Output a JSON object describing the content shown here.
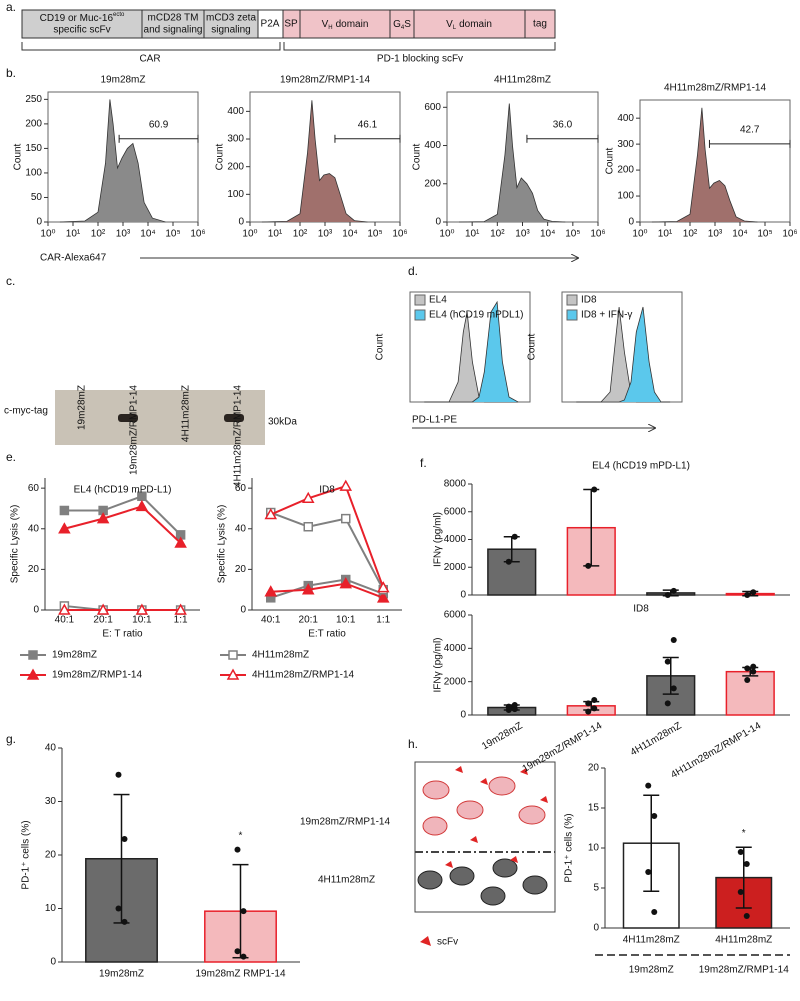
{
  "figure": {
    "panel_labels": {
      "a": "a.",
      "b": "b.",
      "c": "c.",
      "d": "d.",
      "e": "e.",
      "f": "f.",
      "g": "g.",
      "h": "h."
    },
    "panel_a": {
      "boxes": [
        {
          "line1": "CD19 or Muc-16",
          "sup": "ecto",
          "line2": "specific scFv"
        },
        {
          "line1": "mCD28 TM",
          "line2": "and signaling"
        },
        {
          "line1": "mCD3 zeta",
          "line2": "signaling"
        },
        {
          "text": "P2A"
        },
        {
          "text": "SP"
        },
        {
          "text": "V",
          "sub": "H",
          "rest": "domain"
        },
        {
          "text": "G",
          "sub": "4",
          "rest": "S"
        },
        {
          "text": "V",
          "sub": "L",
          "rest": "domain"
        },
        {
          "text": "tag"
        }
      ],
      "brackets": [
        "CAR",
        "PD-1 blocking scFv"
      ]
    },
    "panel_c": {
      "lanes": [
        "19m28mZ",
        "19m28mZ/RMP1-14",
        "4H11m28mZ",
        "4H11m28mZ/RMP1-14"
      ],
      "band_label": "c-myc-tag",
      "size_label": "30kDa"
    },
    "panel_h": {
      "groups": [
        "19m28mZ/RMP1-14",
        "4H11m28mZ"
      ],
      "key": "scFv"
    }
  },
  "chart_data": [
    {
      "type": "area",
      "title": "19m28mZ",
      "ylabel": "Count",
      "xlabel": "CAR-Alexa647",
      "log_x": true,
      "x": [
        3,
        30,
        100,
        200,
        300,
        400,
        600,
        900,
        1500,
        2500,
        4000,
        7000,
        15000,
        50000
      ],
      "values": [
        0,
        2,
        20,
        120,
        250,
        200,
        110,
        130,
        150,
        160,
        120,
        40,
        8,
        0
      ],
      "color": "#8a8a8a",
      "xlim": [
        1,
        1000000
      ],
      "xticks": [
        {
          "value": 1,
          "label": "10⁰"
        },
        {
          "value": 10,
          "label": "10¹"
        },
        {
          "value": 100,
          "label": "10²"
        },
        {
          "value": 1000,
          "label": "10³"
        },
        {
          "value": 10000,
          "label": "10⁴"
        },
        {
          "value": 100000,
          "label": "10⁵"
        },
        {
          "value": 1000000,
          "label": "10⁶"
        }
      ],
      "ylim": [
        0,
        265
      ],
      "yticks": [
        0,
        50,
        100,
        150,
        200,
        250
      ],
      "gate": [
        700,
        1000000
      ],
      "gate_label": "60.9"
    },
    {
      "type": "area",
      "title": "19m28mZ/RMP1-14",
      "ylabel": "Count",
      "log_x": true,
      "x": [
        3,
        30,
        100,
        200,
        300,
        400,
        600,
        900,
        1500,
        2500,
        4000,
        7000,
        15000,
        50000
      ],
      "values": [
        0,
        2,
        30,
        250,
        440,
        300,
        150,
        170,
        175,
        160,
        100,
        30,
        5,
        0
      ],
      "color": "#a0706c",
      "xlim": [
        1,
        1000000
      ],
      "xticks": [
        {
          "value": 1,
          "label": "10⁰"
        },
        {
          "value": 10,
          "label": "10¹"
        },
        {
          "value": 100,
          "label": "10²"
        },
        {
          "value": 1000,
          "label": "10³"
        },
        {
          "value": 10000,
          "label": "10⁴"
        },
        {
          "value": 100000,
          "label": "10⁵"
        },
        {
          "value": 1000000,
          "label": "10⁶"
        }
      ],
      "ylim": [
        0,
        470
      ],
      "yticks": [
        0,
        100,
        200,
        300,
        400
      ],
      "gate": [
        2500,
        1000000
      ],
      "gate_label": "46.1"
    },
    {
      "type": "area",
      "title": "4H11m28mZ",
      "ylabel": "Count",
      "log_x": true,
      "x": [
        3,
        30,
        100,
        200,
        300,
        400,
        600,
        900,
        1500,
        2500,
        4000,
        7000,
        15000,
        50000
      ],
      "values": [
        0,
        2,
        40,
        350,
        620,
        400,
        180,
        230,
        200,
        150,
        60,
        15,
        3,
        0
      ],
      "color": "#8a8a8a",
      "xlim": [
        1,
        1000000
      ],
      "xticks": [
        {
          "value": 1,
          "label": "10⁰"
        },
        {
          "value": 10,
          "label": "10¹"
        },
        {
          "value": 100,
          "label": "10²"
        },
        {
          "value": 1000,
          "label": "10³"
        },
        {
          "value": 10000,
          "label": "10⁴"
        },
        {
          "value": 100000,
          "label": "10⁵"
        },
        {
          "value": 1000000,
          "label": "10⁶"
        }
      ],
      "ylim": [
        0,
        680
      ],
      "yticks": [
        0,
        200,
        400,
        600
      ],
      "gate": [
        1500,
        1000000
      ],
      "gate_label": "36.0"
    },
    {
      "type": "area",
      "title": "4H11m28mZ/RMP1-14",
      "ylabel": "Count",
      "log_x": true,
      "x": [
        3,
        30,
        100,
        200,
        300,
        400,
        600,
        900,
        1500,
        2500,
        4000,
        7000,
        15000,
        50000
      ],
      "values": [
        0,
        2,
        30,
        260,
        440,
        280,
        130,
        150,
        160,
        140,
        80,
        20,
        4,
        0
      ],
      "color": "#a0706c",
      "xlim": [
        1,
        1000000
      ],
      "xticks": [
        {
          "value": 1,
          "label": "10⁰"
        },
        {
          "value": 10,
          "label": "10¹"
        },
        {
          "value": 100,
          "label": "10²"
        },
        {
          "value": 1000,
          "label": "10³"
        },
        {
          "value": 10000,
          "label": "10⁴"
        },
        {
          "value": 100000,
          "label": "10⁵"
        },
        {
          "value": 1000000,
          "label": "10⁶"
        }
      ],
      "ylim": [
        0,
        470
      ],
      "yticks": [
        0,
        100,
        200,
        300,
        400
      ],
      "gate": [
        600,
        1000000
      ],
      "gate_label": "42.7"
    },
    {
      "type": "area",
      "ylabel": "Count",
      "xlabel": "PD-L1-PE",
      "log_x": true,
      "x": [
        3,
        20,
        40,
        60,
        80,
        120,
        200,
        300,
        500,
        800,
        1200,
        2000,
        4000
      ],
      "xlim": [
        1,
        10000
      ],
      "ylim": [
        0,
        110
      ],
      "series": [
        {
          "name": "EL4",
          "color": "#c4c4c4",
          "values": [
            0,
            0,
            20,
            70,
            90,
            40,
            5,
            0,
            0,
            0,
            0,
            0,
            0
          ]
        },
        {
          "name": "EL4 (hCD19 mPDL1)",
          "color": "#5bc8ec",
          "values": [
            0,
            0,
            0,
            0,
            0,
            0,
            5,
            30,
            90,
            100,
            40,
            5,
            0
          ]
        }
      ]
    },
    {
      "type": "area",
      "ylabel": "Count",
      "log_x": true,
      "x": [
        3,
        20,
        40,
        60,
        80,
        120,
        200,
        300,
        500,
        800,
        1200,
        2000,
        4000
      ],
      "xlim": [
        1,
        10000
      ],
      "ylim": [
        0,
        110
      ],
      "series": [
        {
          "name": "ID8",
          "color": "#c4c4c4",
          "values": [
            0,
            0,
            10,
            60,
            95,
            50,
            8,
            0,
            0,
            0,
            0,
            0,
            0
          ]
        },
        {
          "name": "ID8 + IFN-γ",
          "color": "#5bc8ec",
          "values": [
            0,
            0,
            0,
            0,
            0,
            2,
            20,
            70,
            95,
            40,
            10,
            0,
            0
          ]
        }
      ]
    },
    {
      "type": "line",
      "title": "EL4 (hCD19 mPD-L1)",
      "ylabel": "Specific Lysis (%)",
      "xlabel": "E: T ratio",
      "categories": [
        "40:1",
        "20:1",
        "10:1",
        "1:1"
      ],
      "ylim": [
        0,
        65
      ],
      "yticks": [
        0,
        20,
        40,
        60
      ],
      "series": [
        {
          "name": "19m28mZ",
          "color": "#808080",
          "marker": "square",
          "filled": true,
          "values": [
            49,
            49,
            56,
            37
          ]
        },
        {
          "name": "19m28mZ/RMP1-14",
          "color": "#e8202a",
          "marker": "triangle",
          "filled": true,
          "values": [
            40,
            45,
            51,
            33
          ]
        },
        {
          "name": "4H11m28mZ",
          "color": "#808080",
          "marker": "square",
          "filled": false,
          "values": [
            2,
            0,
            0,
            0
          ]
        },
        {
          "name": "4H11m28mZ/RMP1-14",
          "color": "#e8202a",
          "marker": "triangle",
          "filled": false,
          "values": [
            0,
            0,
            0,
            0
          ]
        }
      ]
    },
    {
      "type": "line",
      "title": "ID8",
      "ylabel": "Specific Lysis (%)",
      "xlabel": "E:T ratio",
      "categories": [
        "40:1",
        "20:1",
        "10:1",
        "1:1"
      ],
      "ylim": [
        0,
        65
      ],
      "yticks": [
        0,
        20,
        40,
        60
      ],
      "series": [
        {
          "name": "19m28mZ",
          "color": "#808080",
          "marker": "square",
          "filled": true,
          "values": [
            6,
            12,
            15,
            8
          ]
        },
        {
          "name": "19m28mZ/RMP1-14",
          "color": "#e8202a",
          "marker": "triangle",
          "filled": true,
          "values": [
            9,
            10,
            13,
            6
          ]
        },
        {
          "name": "4H11m28mZ",
          "color": "#808080",
          "marker": "square",
          "filled": false,
          "values": [
            48,
            41,
            45,
            10
          ]
        },
        {
          "name": "4H11m28mZ/RMP1-14",
          "color": "#e8202a",
          "marker": "triangle",
          "filled": false,
          "values": [
            47,
            55,
            61,
            11
          ]
        }
      ]
    },
    {
      "type": "bar",
      "title": "EL4 (hCD19 mPD-L1)",
      "ylabel": "IFNγ (pg/ml)",
      "values": [
        3300,
        4850,
        150,
        100
      ],
      "errors": [
        900,
        2750,
        200,
        150
      ],
      "points": [
        [
          2400,
          4200
        ],
        [
          2100,
          7600
        ],
        [
          0,
          300
        ],
        [
          0,
          200
        ]
      ],
      "colors": [
        "#6b6b6b",
        "#f4b9bc",
        "#6b6b6b",
        "#f4b9bc"
      ],
      "edge_colors": [
        "#222222",
        "#e8202a",
        "#222222",
        "#e8202a"
      ],
      "ylim": [
        0,
        8000
      ],
      "yticks": [
        0,
        2000,
        4000,
        6000,
        8000
      ]
    },
    {
      "type": "bar",
      "title": "ID8",
      "ylabel": "IFNγ (pg/ml)",
      "categories": [
        "19m28mZ",
        "19m28mZ/RMP1-14",
        "4H11m28mZ",
        "4H11m28mZ/RMP1-14"
      ],
      "values": [
        450,
        550,
        2350,
        2600
      ],
      "errors": [
        150,
        250,
        1100,
        250
      ],
      "points": [
        [
          300,
          350,
          500,
          600
        ],
        [
          200,
          400,
          700,
          900
        ],
        [
          700,
          1600,
          3200,
          4500
        ],
        [
          2100,
          2600,
          2800,
          2900
        ]
      ],
      "colors": [
        "#6b6b6b",
        "#f4b9bc",
        "#6b6b6b",
        "#f4b9bc"
      ],
      "edge_colors": [
        "#222222",
        "#e8202a",
        "#222222",
        "#e8202a"
      ],
      "ylim": [
        0,
        6000
      ],
      "yticks": [
        0,
        2000,
        4000,
        6000
      ]
    },
    {
      "type": "bar",
      "ylabel": "PD-1⁺ cells (%)",
      "categories": [
        "19m28mZ",
        "19m28mZ RMP1-14"
      ],
      "values": [
        19.3,
        9.5
      ],
      "errors": [
        12,
        8.7
      ],
      "points": [
        [
          35,
          23,
          10,
          7.5
        ],
        [
          21,
          9.5,
          2,
          1
        ]
      ],
      "annotations": [
        null,
        "*"
      ],
      "colors": [
        "#6b6b6b",
        "#f4b9bc"
      ],
      "edge_colors": [
        "#222222",
        "#e8202a"
      ],
      "ylim": [
        0,
        40
      ],
      "yticks": [
        0,
        10,
        20,
        30,
        40
      ]
    },
    {
      "type": "bar",
      "ylabel": "PD-1⁺ cells (%)",
      "categories": [
        "4H11m28mZ",
        "4H11m28mZ"
      ],
      "sub_labels": [
        "19m28mZ",
        "19m28mZ/RMP1-14"
      ],
      "sub_label_colors": [
        "#888888",
        "#e8202a"
      ],
      "values": [
        10.6,
        6.3
      ],
      "errors": [
        6,
        3.8
      ],
      "points": [
        [
          17.8,
          14,
          7,
          2
        ],
        [
          9.5,
          8,
          4.5,
          1.5
        ]
      ],
      "annotations": [
        null,
        "*"
      ],
      "colors": [
        "#ffffff",
        "#cc1f1f"
      ],
      "edge_colors": [
        "#222222",
        "#222222"
      ],
      "ylim": [
        0,
        20
      ],
      "yticks": [
        0,
        5,
        10,
        15,
        20
      ]
    }
  ]
}
